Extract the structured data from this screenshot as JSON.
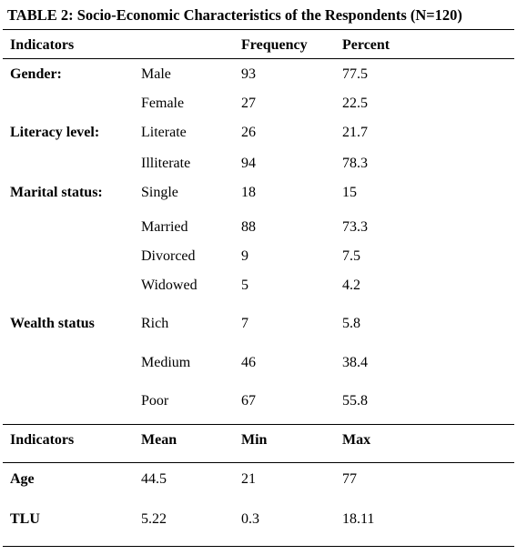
{
  "caption": "TABLE 2: Socio-Economic Characteristics of the Respondents (N=120)",
  "header1": {
    "indicators": "Indicators",
    "frequency": "Frequency",
    "percent": "Percent"
  },
  "groups": [
    {
      "label": "Gender:",
      "rows": [
        {
          "category": "Male",
          "frequency": "93",
          "percent": "77.5"
        },
        {
          "category": "Female",
          "frequency": "27",
          "percent": "22.5"
        }
      ]
    },
    {
      "label": "Literacy level:",
      "rows": [
        {
          "category": "Literate",
          "frequency": "26",
          "percent": "21.7"
        },
        {
          "category": "Illiterate",
          "frequency": "94",
          "percent": "78.3"
        }
      ]
    },
    {
      "label": "Marital status:",
      "rows": [
        {
          "category": "Single",
          "frequency": "18",
          "percent": "15"
        },
        {
          "category": "Married",
          "frequency": "88",
          "percent": "73.3"
        },
        {
          "category": "Divorced",
          "frequency": "9",
          "percent": "7.5"
        },
        {
          "category": "Widowed",
          "frequency": "5",
          "percent": "4.2"
        }
      ]
    },
    {
      "label": "Wealth status",
      "rows": [
        {
          "category": "Rich",
          "frequency": "7",
          "percent": "5.8"
        },
        {
          "category": "Medium",
          "frequency": "46",
          "percent": "38.4"
        },
        {
          "category": "Poor",
          "frequency": "67",
          "percent": "55.8"
        }
      ]
    }
  ],
  "header2": {
    "indicators": "Indicators",
    "mean": "Mean",
    "min": "Min",
    "max": "Max"
  },
  "stats": [
    {
      "label": "Age",
      "mean": "44.5",
      "min": "21",
      "max": "77"
    },
    {
      "label": "TLU",
      "mean": "5.22",
      "min": "0.3",
      "max": "18.11"
    }
  ]
}
